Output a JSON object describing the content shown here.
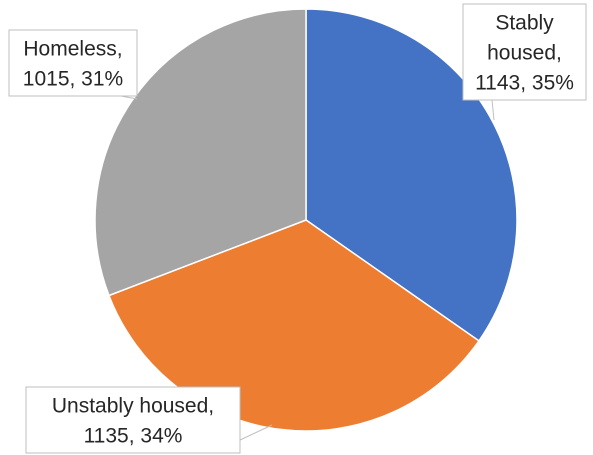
{
  "chart_data": {
    "type": "pie",
    "title": "",
    "slices": [
      {
        "label": "Stably housed",
        "value": 1143,
        "percent": 35,
        "color": "#4472C4",
        "label_lines": [
          "Stably",
          "housed,",
          "1143, 35%"
        ]
      },
      {
        "label": "Unstably housed",
        "value": 1135,
        "percent": 34,
        "color": "#ED7D31",
        "label_lines": [
          "Unstably housed,",
          "1135, 34%"
        ]
      },
      {
        "label": "Homeless",
        "value": 1015,
        "percent": 31,
        "color": "#A5A5A5",
        "label_lines": [
          "Homeless,",
          "1015, 31%"
        ]
      }
    ],
    "start_angle": "12 o'clock",
    "direction": "clockwise",
    "legend": "none"
  }
}
